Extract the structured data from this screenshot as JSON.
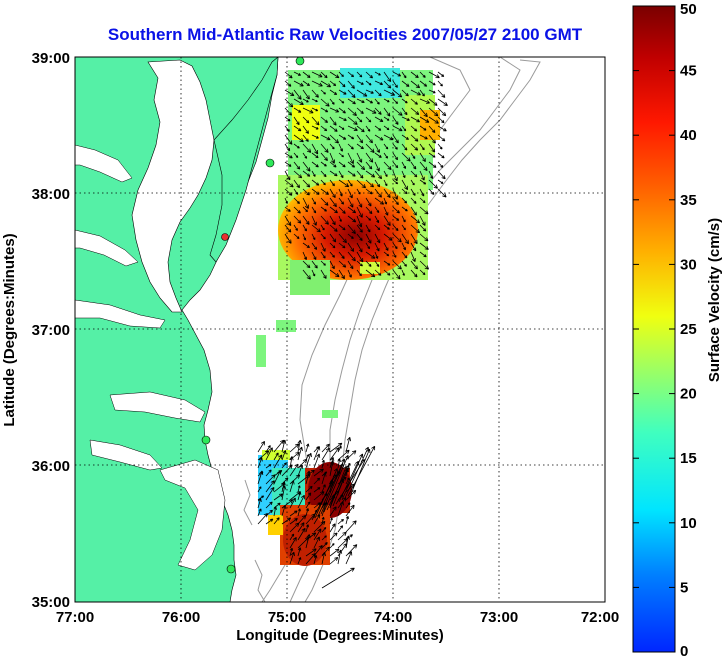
{
  "title": "Southern Mid-Atlantic Raw Velocities 2007/05/27 2100 GMT",
  "map": {
    "xlabel": "Longitude (Degrees:Minutes)",
    "ylabel": "Latitude (Degrees:Minutes)",
    "xticks": [
      "77:00",
      "76:00",
      "75:00",
      "74:00",
      "73:00",
      "72:00"
    ],
    "yticks": [
      "39:00",
      "38:00",
      "37:00",
      "36:00",
      "35:00"
    ],
    "xlim_deg_west": [
      77,
      72
    ],
    "ylim_deg_north": [
      35,
      39
    ],
    "grid": "dotted",
    "land_color": "#55f0a6",
    "water_color": "#ffffff",
    "contour_color": "#9a9a9a"
  },
  "colorbar": {
    "label": "Surface Velocity (cm/s)",
    "min": 0,
    "max": 50,
    "ticks": [
      "50",
      "45",
      "40",
      "35",
      "30",
      "25",
      "20",
      "15",
      "10",
      "5",
      "0"
    ],
    "colormap": "jet"
  }
}
